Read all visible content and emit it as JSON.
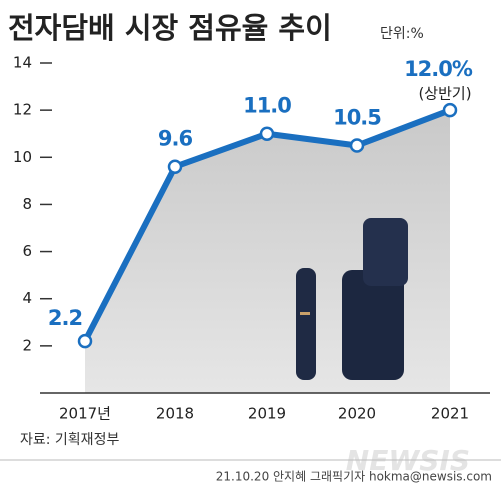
{
  "chart_data": {
    "type": "line",
    "title": "전자담배 시장 점유율 추이",
    "unit": "단위:%",
    "categories": [
      "2017년",
      "2018",
      "2019",
      "2020",
      "2021"
    ],
    "values": [
      2.2,
      9.6,
      11.0,
      10.5,
      12.0
    ],
    "value_labels": [
      "2.2",
      "9.6",
      "11.0",
      "10.5",
      "12.0%"
    ],
    "annotation": "(상반기)",
    "color": "#1a6fc0",
    "ylim": [
      0,
      14
    ],
    "yticks": [
      2,
      4,
      6,
      8,
      10,
      12,
      14
    ],
    "grid": true,
    "source": "자료: 기획재정부",
    "credit": "21.10.20 안지혜 그래픽기자 hokma@newsis.com",
    "watermark": "NEWSIS"
  }
}
